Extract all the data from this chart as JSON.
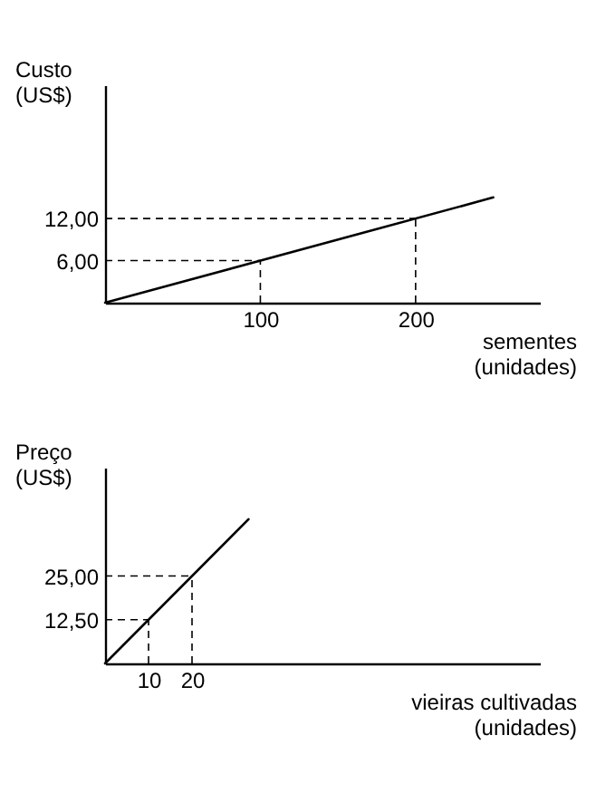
{
  "chart_data": [
    {
      "type": "line",
      "ylabel": "Custo (US$)",
      "xlabel": "sementes (unidades)",
      "x": [
        0,
        250
      ],
      "series": [
        {
          "color": "#000000",
          "values": [
            0,
            15
          ]
        }
      ],
      "xlim": [
        0,
        280
      ],
      "ylim": [
        0,
        31
      ],
      "xticks": [
        100,
        200
      ],
      "yticks": [
        {
          "value": 6,
          "label": "6,00"
        },
        {
          "value": 12,
          "label": "12,00"
        }
      ],
      "grid": false,
      "ref_lines": [
        {
          "axis": "x",
          "value": 100,
          "line_style": "dashed"
        },
        {
          "axis": "x",
          "value": 200,
          "line_style": "dashed"
        },
        {
          "axis": "y",
          "value": 6,
          "line_style": "dashed"
        },
        {
          "axis": "y",
          "value": 12,
          "line_style": "dashed"
        }
      ]
    },
    {
      "type": "line",
      "ylabel": "Preço (US$)",
      "xlabel": "vieiras cultivadas (unidades)",
      "x": [
        0,
        33
      ],
      "series": [
        {
          "color": "#000000",
          "values": [
            0,
            41.25
          ]
        }
      ],
      "xlim": [
        0,
        100
      ],
      "ylim": [
        0,
        56
      ],
      "xticks": [
        10,
        20
      ],
      "yticks": [
        {
          "value": 12.5,
          "label": "12,50"
        },
        {
          "value": 25,
          "label": "25,00"
        }
      ],
      "grid": false,
      "ref_lines": [
        {
          "axis": "x",
          "value": 10,
          "line_style": "dashed"
        },
        {
          "axis": "x",
          "value": 20,
          "line_style": "dashed"
        },
        {
          "axis": "y",
          "value": 12.5,
          "line_style": "dashed"
        },
        {
          "axis": "y",
          "value": 25,
          "line_style": "dashed"
        }
      ]
    }
  ]
}
